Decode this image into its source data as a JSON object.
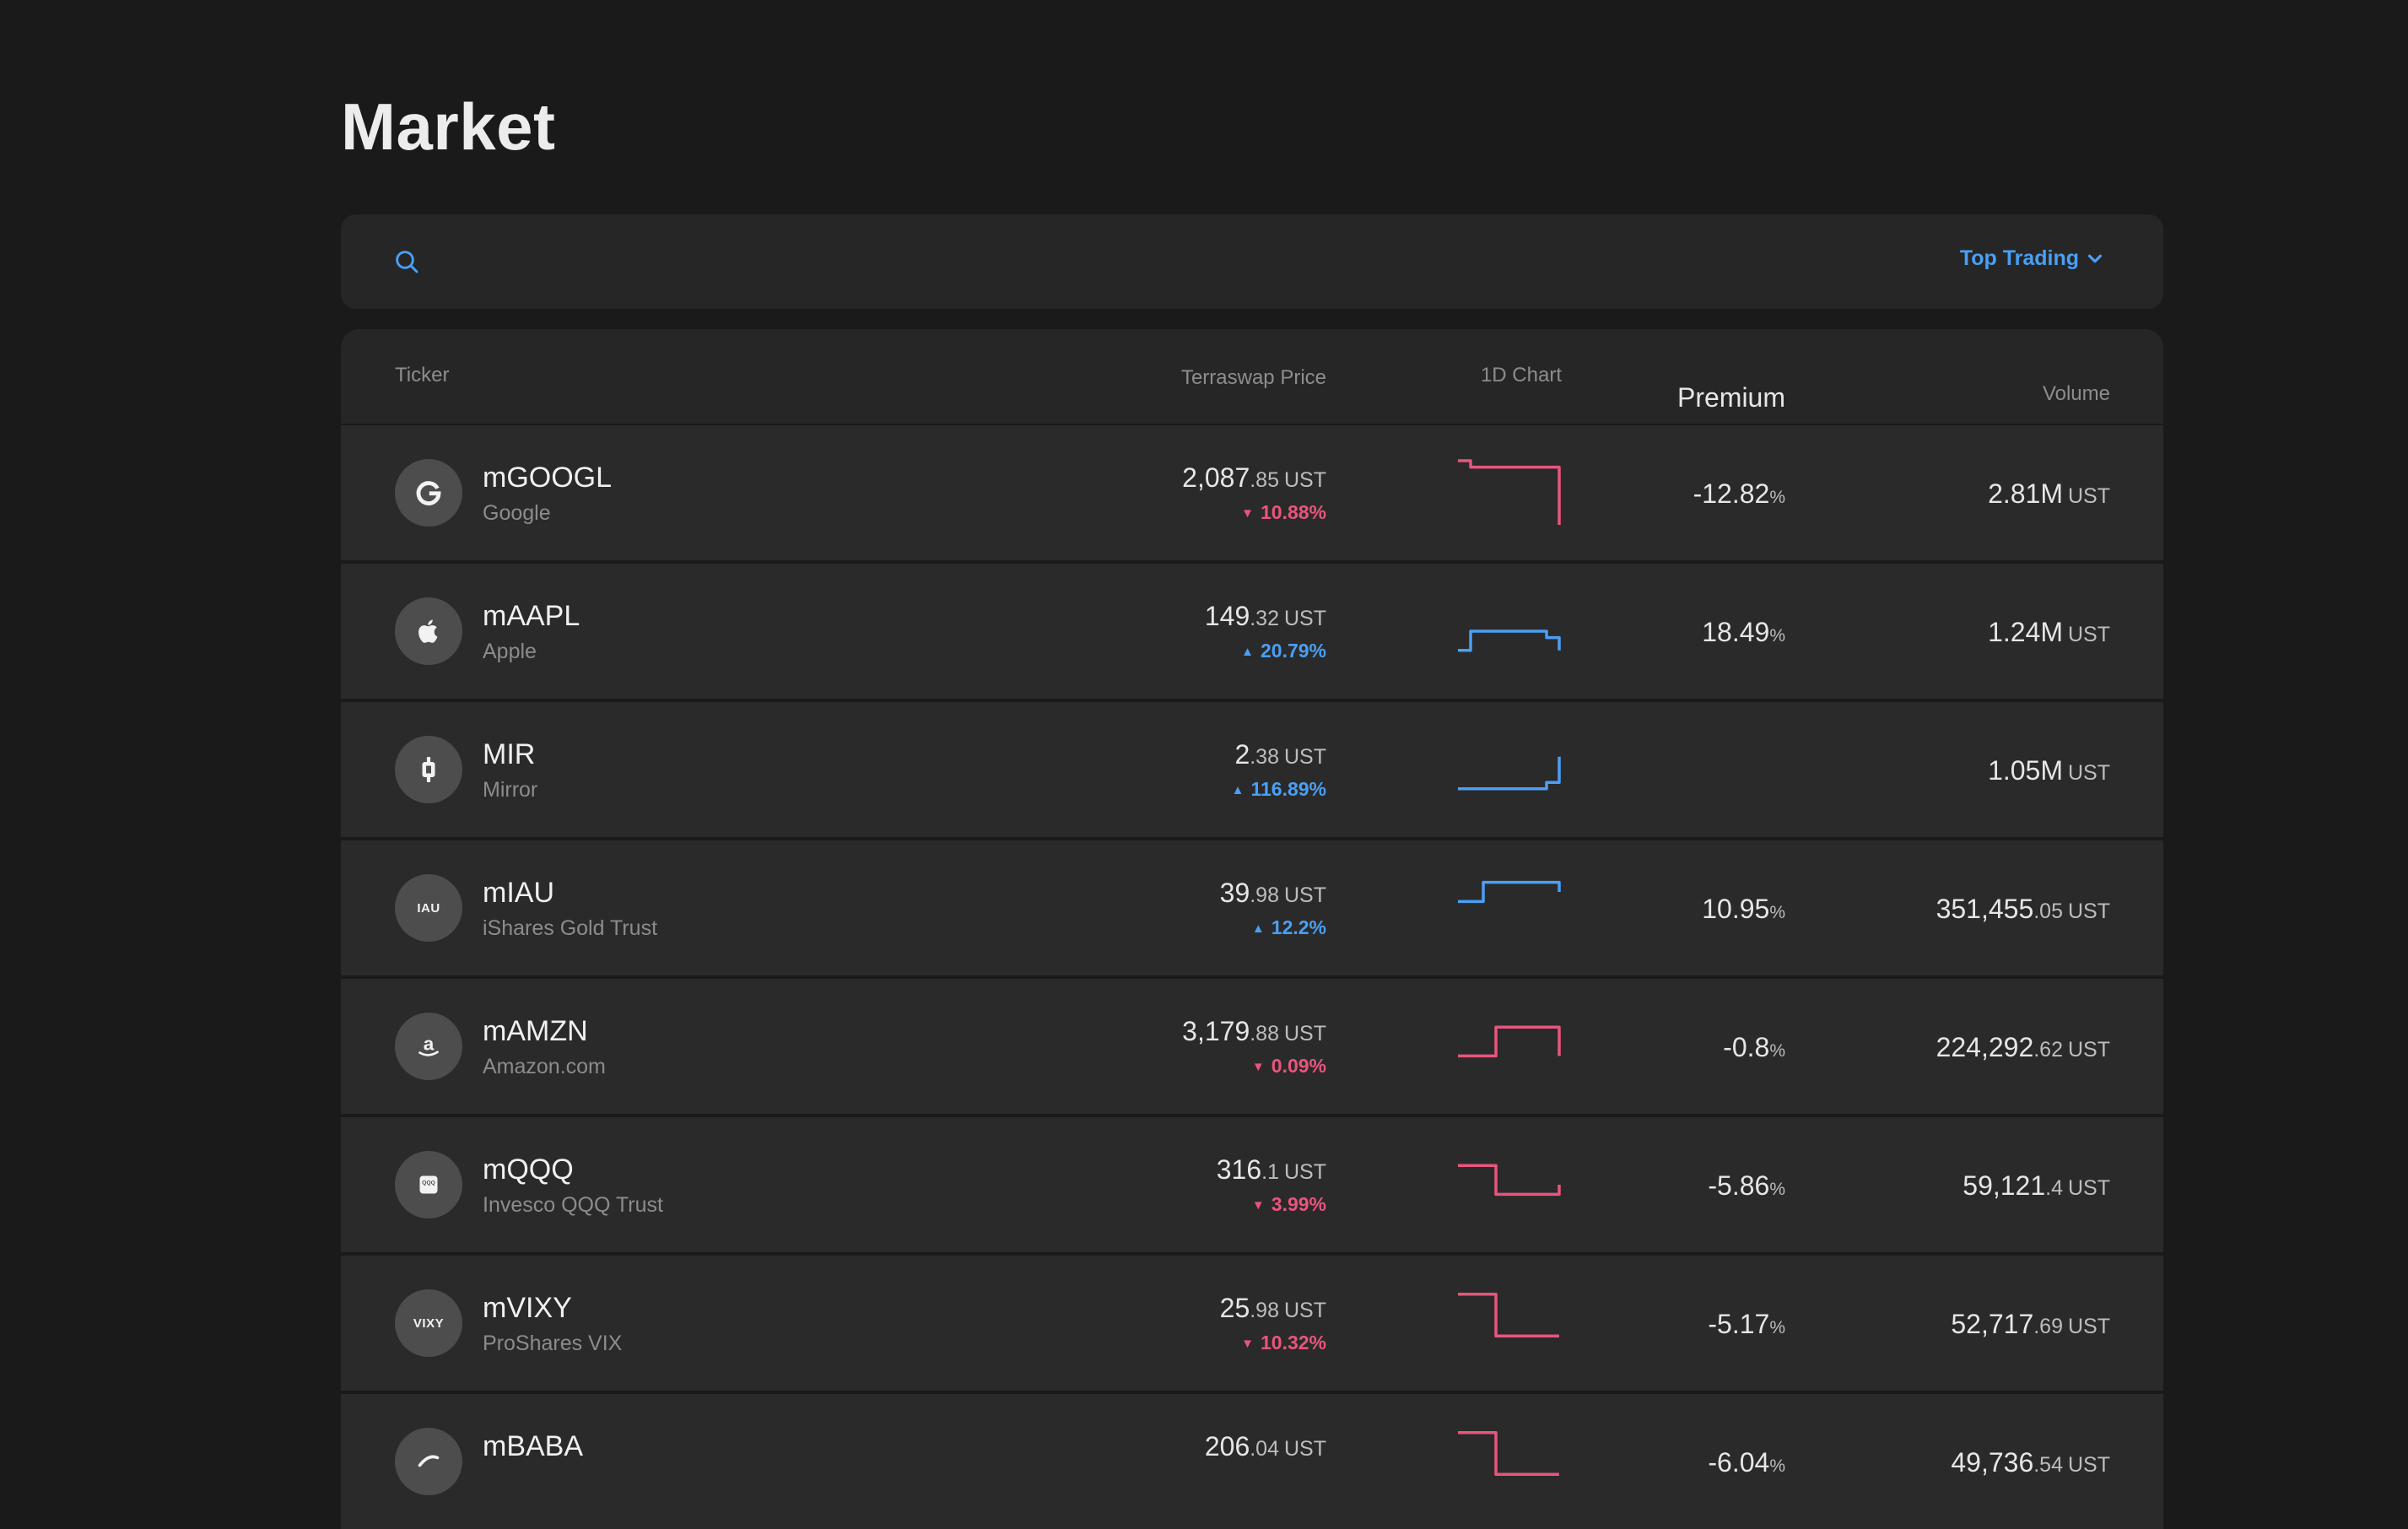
{
  "page": {
    "title": "Market"
  },
  "search": {
    "placeholder": "",
    "value": ""
  },
  "sort": {
    "label": "Top Trading"
  },
  "colors": {
    "up": "#4a9ff5",
    "down": "#e9557c",
    "accent": "#4a9ff5"
  },
  "table": {
    "columns": {
      "ticker": "Ticker",
      "price": "Terraswap Price",
      "chart": "1D Chart",
      "premium": "Premium",
      "volume": "Volume"
    },
    "rows": [
      {
        "symbol": "mGOOGL",
        "name": "Google",
        "icon": "google-icon",
        "icon_text": "",
        "price_int": "2,087",
        "price_dec": ".85",
        "unit": "UST",
        "change": "10.88%",
        "direction": "down",
        "spark": [
          1.0,
          0.9,
          0.9,
          0.9,
          0.9,
          0.9,
          0.9,
          0.9,
          0.0
        ],
        "premium": "-12.82",
        "premium_unit": "%",
        "volume_int": "2.81M",
        "volume_dec": "",
        "volume_unit": "UST"
      },
      {
        "symbol": "mAAPL",
        "name": "Apple",
        "icon": "apple-icon",
        "icon_text": "",
        "price_int": "149",
        "price_dec": ".32",
        "unit": "UST",
        "change": "20.79%",
        "direction": "up",
        "spark": [
          0.2,
          0.5,
          0.5,
          0.5,
          0.5,
          0.5,
          0.5,
          0.4,
          0.2
        ],
        "premium": "18.49",
        "premium_unit": "%",
        "volume_int": "1.24M",
        "volume_dec": "",
        "volume_unit": "UST"
      },
      {
        "symbol": "MIR",
        "name": "Mirror",
        "icon": "mirror-icon",
        "icon_text": "",
        "price_int": "2",
        "price_dec": ".38",
        "unit": "UST",
        "change": "116.89%",
        "direction": "up",
        "spark": [
          0.2,
          0.2,
          0.2,
          0.2,
          0.2,
          0.2,
          0.2,
          0.3,
          0.7
        ],
        "premium": "",
        "premium_unit": "",
        "volume_int": "1.05M",
        "volume_dec": "",
        "volume_unit": "UST"
      },
      {
        "symbol": "mIAU",
        "name": "iShares Gold Trust",
        "icon": "iau-icon",
        "icon_text": "IAU",
        "price_int": "39",
        "price_dec": ".98",
        "unit": "UST",
        "change": "12.2%",
        "direction": "up",
        "spark": [
          0.6,
          0.6,
          0.9,
          0.9,
          0.9,
          0.9,
          0.9,
          0.9,
          0.75
        ],
        "premium": "10.95",
        "premium_unit": "%",
        "volume_int": "351,455",
        "volume_dec": ".05",
        "volume_unit": "UST"
      },
      {
        "symbol": "mAMZN",
        "name": "Amazon.com",
        "icon": "amazon-icon",
        "icon_text": "",
        "price_int": "3,179",
        "price_dec": ".88",
        "unit": "UST",
        "change": "0.09%",
        "direction": "down",
        "spark": [
          0.35,
          0.35,
          0.35,
          0.8,
          0.8,
          0.8,
          0.8,
          0.8,
          0.35
        ],
        "premium": "-0.8",
        "premium_unit": "%",
        "volume_int": "224,292",
        "volume_dec": ".62",
        "volume_unit": "UST"
      },
      {
        "symbol": "mQQQ",
        "name": "Invesco QQQ Trust",
        "icon": "qqq-icon",
        "icon_text": "",
        "price_int": "316",
        "price_dec": ".1",
        "unit": "UST",
        "change": "3.99%",
        "direction": "down",
        "spark": [
          0.8,
          0.8,
          0.8,
          0.35,
          0.35,
          0.35,
          0.35,
          0.35,
          0.5
        ],
        "premium": "-5.86",
        "premium_unit": "%",
        "volume_int": "59,121",
        "volume_dec": ".4",
        "volume_unit": "UST"
      },
      {
        "symbol": "mVIXY",
        "name": "ProShares VIX",
        "icon": "vixy-icon",
        "icon_text": "VIXY",
        "price_int": "25",
        "price_dec": ".98",
        "unit": "UST",
        "change": "10.32%",
        "direction": "down",
        "spark": [
          0.95,
          0.95,
          0.95,
          0.3,
          0.3,
          0.3,
          0.3,
          0.3,
          0.3
        ],
        "premium": "-5.17",
        "premium_unit": "%",
        "volume_int": "52,717",
        "volume_dec": ".69",
        "volume_unit": "UST"
      },
      {
        "symbol": "mBABA",
        "name": "",
        "icon": "alibaba-icon",
        "icon_text": "",
        "price_int": "206",
        "price_dec": ".04",
        "unit": "UST",
        "change": "",
        "direction": "down",
        "spark": [
          0.95,
          0.95,
          0.95,
          0.3,
          0.3,
          0.3,
          0.3,
          0.3,
          0.3
        ],
        "premium": "-6.04",
        "premium_unit": "%",
        "volume_int": "49,736",
        "volume_dec": ".54",
        "volume_unit": "UST"
      }
    ]
  }
}
